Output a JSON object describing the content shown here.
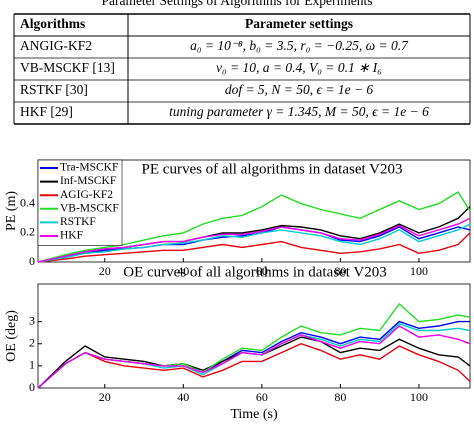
{
  "table_title": "Parameter Settings of Algorithms for Experiments",
  "table": {
    "header": [
      "Algorithms",
      "Parameter settings"
    ],
    "rows": [
      [
        "ANGIG-KF2",
        "a₀ = 10⁻⁸, b₀ = 3.5, r₀ = −0.25, ω = 0.7"
      ],
      [
        "VB-MSCKF [13]",
        "ν₀ = 10, a = 0.4, V₀ = 0.1 ∗ I₆"
      ],
      [
        "RSTKF [30]",
        "dof = 5, N = 50, ϵ = 1e − 6"
      ],
      [
        "HKF [29]",
        "tuning parameter γ = 1.345, M = 50, ϵ = 1e − 6"
      ]
    ]
  },
  "chart_data": [
    {
      "type": "line",
      "title": "PE curves of all algorithms in dataset V203",
      "ylabel": "PE (m)",
      "x": [
        3,
        10,
        15,
        20,
        25,
        30,
        35,
        40,
        45,
        50,
        55,
        60,
        65,
        70,
        75,
        80,
        85,
        90,
        95,
        100,
        105,
        110,
        113
      ],
      "xlim": [
        3,
        113
      ],
      "xticks": [
        20,
        40,
        60,
        80,
        100
      ],
      "ylim": [
        0,
        0.7
      ],
      "yticks": [
        0,
        0.2,
        0.4
      ],
      "legend": "upper left",
      "series": [
        {
          "name": "Tra-MSCKF",
          "color": "#0000ff",
          "values": [
            0,
            0.04,
            0.06,
            0.08,
            0.09,
            0.1,
            0.12,
            0.12,
            0.15,
            0.17,
            0.18,
            0.2,
            0.24,
            0.22,
            0.2,
            0.15,
            0.14,
            0.18,
            0.24,
            0.16,
            0.2,
            0.24,
            0.22
          ]
        },
        {
          "name": "Inf-MSCKF",
          "color": "#000000",
          "values": [
            0,
            0.04,
            0.07,
            0.09,
            0.1,
            0.12,
            0.14,
            0.14,
            0.17,
            0.2,
            0.2,
            0.22,
            0.25,
            0.24,
            0.22,
            0.18,
            0.16,
            0.2,
            0.26,
            0.2,
            0.24,
            0.3,
            0.38
          ]
        },
        {
          "name": "AGIG-KF2",
          "color": "#e8000b",
          "values": [
            0,
            0.02,
            0.04,
            0.05,
            0.06,
            0.07,
            0.08,
            0.08,
            0.1,
            0.12,
            0.1,
            0.12,
            0.14,
            0.1,
            0.08,
            0.06,
            0.07,
            0.09,
            0.12,
            0.06,
            0.08,
            0.12,
            0.2
          ]
        },
        {
          "name": "VB-MSCKF",
          "color": "#22dd22",
          "values": [
            0,
            0.05,
            0.08,
            0.1,
            0.12,
            0.15,
            0.18,
            0.2,
            0.26,
            0.3,
            0.32,
            0.38,
            0.46,
            0.4,
            0.36,
            0.33,
            0.3,
            0.36,
            0.42,
            0.36,
            0.4,
            0.48,
            0.35
          ]
        },
        {
          "name": "RSTKF",
          "color": "#00cccc",
          "values": [
            0,
            0.03,
            0.06,
            0.07,
            0.09,
            0.1,
            0.12,
            0.13,
            0.15,
            0.18,
            0.17,
            0.2,
            0.22,
            0.2,
            0.18,
            0.14,
            0.12,
            0.16,
            0.22,
            0.14,
            0.18,
            0.22,
            0.26
          ]
        },
        {
          "name": "HKF",
          "color": "#ee00ee",
          "values": [
            0,
            0.04,
            0.07,
            0.09,
            0.1,
            0.12,
            0.14,
            0.14,
            0.17,
            0.19,
            0.19,
            0.21,
            0.24,
            0.22,
            0.2,
            0.16,
            0.15,
            0.19,
            0.25,
            0.18,
            0.22,
            0.26,
            0.3
          ]
        }
      ]
    },
    {
      "type": "line",
      "title": "OE curves of all algorithms in dataset V203",
      "ylabel": "OE (deg)",
      "xlabel": "Time (s)",
      "x": [
        3,
        10,
        15,
        20,
        25,
        30,
        35,
        40,
        45,
        50,
        55,
        60,
        65,
        70,
        75,
        80,
        85,
        90,
        95,
        100,
        105,
        110,
        113
      ],
      "xlim": [
        3,
        113
      ],
      "xticks": [
        20,
        40,
        60,
        80,
        100
      ],
      "ylim": [
        0,
        4.7
      ],
      "yticks": [
        0,
        1,
        2,
        3
      ],
      "series": [
        {
          "color": "#0000ff",
          "values": [
            0,
            1.1,
            1.6,
            1.3,
            1.2,
            1.1,
            1.0,
            1.1,
            0.7,
            1.2,
            1.7,
            1.6,
            2.1,
            2.5,
            2.3,
            2.0,
            2.3,
            2.2,
            3.0,
            2.7,
            2.8,
            3.0,
            3.0
          ]
        },
        {
          "color": "#000000",
          "values": [
            0,
            1.2,
            1.9,
            1.4,
            1.3,
            1.2,
            1.0,
            1.1,
            0.8,
            1.2,
            1.6,
            1.5,
            1.9,
            2.3,
            2.1,
            1.6,
            1.8,
            1.7,
            2.2,
            1.8,
            1.5,
            1.4,
            1.0
          ]
        },
        {
          "color": "#e8000b",
          "values": [
            0,
            1.1,
            1.6,
            1.2,
            1.0,
            0.9,
            0.8,
            0.9,
            0.5,
            0.8,
            1.2,
            1.2,
            1.6,
            2.0,
            1.7,
            1.3,
            1.5,
            1.3,
            1.9,
            1.5,
            1.2,
            0.8,
            0.3
          ]
        },
        {
          "color": "#22dd22",
          "values": [
            0,
            1.1,
            1.6,
            1.3,
            1.2,
            1.1,
            1.0,
            1.1,
            0.7,
            1.3,
            1.8,
            1.7,
            2.3,
            2.8,
            2.5,
            2.4,
            2.7,
            2.6,
            3.8,
            3.0,
            3.1,
            3.3,
            3.2
          ]
        },
        {
          "color": "#00cccc",
          "values": [
            0,
            1.1,
            1.6,
            1.3,
            1.2,
            1.1,
            0.9,
            1.0,
            0.6,
            1.1,
            1.6,
            1.5,
            2.0,
            2.4,
            2.2,
            1.9,
            2.2,
            2.1,
            2.9,
            2.6,
            2.6,
            2.7,
            2.6
          ]
        },
        {
          "color": "#ee00ee",
          "values": [
            0,
            1.1,
            1.6,
            1.3,
            1.2,
            1.1,
            1.0,
            1.0,
            0.7,
            1.1,
            1.6,
            1.5,
            2.0,
            2.4,
            2.1,
            1.8,
            2.1,
            2.0,
            2.8,
            2.3,
            2.4,
            2.2,
            2.0
          ]
        }
      ]
    }
  ]
}
